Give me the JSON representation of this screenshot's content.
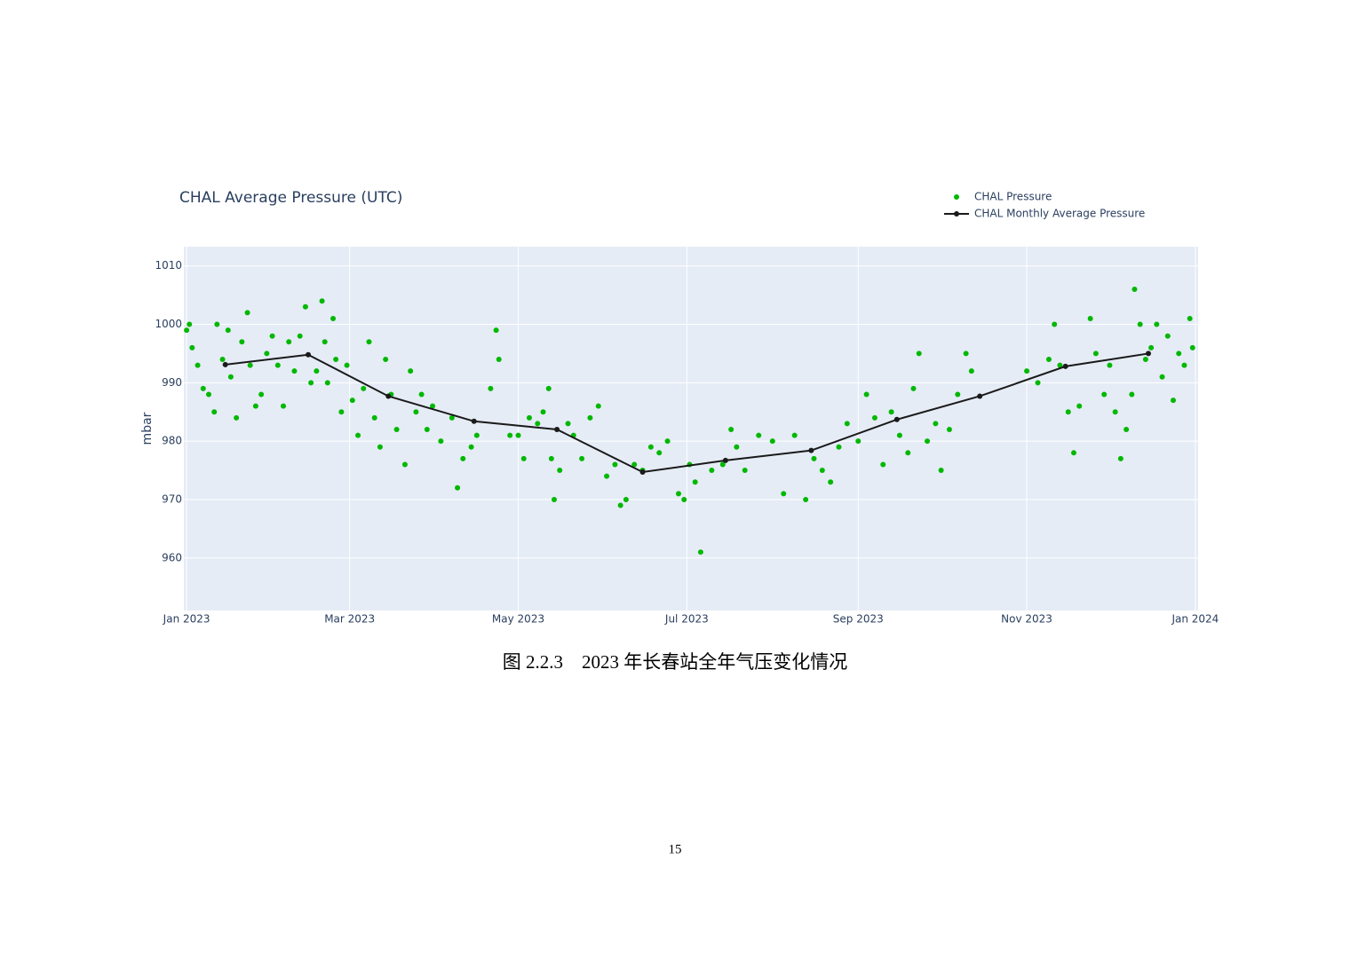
{
  "chart_data": {
    "type": "scatter",
    "title": "CHAL Average Pressure (UTC)",
    "ylabel": "mbar",
    "xlim": [
      "2022-12-31",
      "2024-01-02"
    ],
    "xticks": [
      {
        "value": "2023-01-01",
        "label": "Jan 2023"
      },
      {
        "value": "2023-03-01",
        "label": "Mar 2023"
      },
      {
        "value": "2023-05-01",
        "label": "May 2023"
      },
      {
        "value": "2023-07-01",
        "label": "Jul 2023"
      },
      {
        "value": "2023-09-01",
        "label": "Sep 2023"
      },
      {
        "value": "2023-11-01",
        "label": "Nov 2023"
      },
      {
        "value": "2024-01-01",
        "label": "Jan 2024"
      }
    ],
    "ylim": [
      951,
      1013.3
    ],
    "yticks": [
      960,
      970,
      980,
      990,
      1000,
      1010
    ],
    "grid": true,
    "legend": "top-right",
    "series": [
      {
        "name": "CHAL Pressure",
        "color": "#00b800",
        "mode": "markers",
        "x": [
          "2023-01-01",
          "2023-01-02",
          "2023-01-03",
          "2023-01-05",
          "2023-01-07",
          "2023-01-09",
          "2023-01-11",
          "2023-01-12",
          "2023-01-14",
          "2023-01-16",
          "2023-01-17",
          "2023-01-19",
          "2023-01-21",
          "2023-01-23",
          "2023-01-24",
          "2023-01-26",
          "2023-01-28",
          "2023-01-30",
          "2023-02-01",
          "2023-02-03",
          "2023-02-05",
          "2023-02-07",
          "2023-02-09",
          "2023-02-11",
          "2023-02-13",
          "2023-02-15",
          "2023-02-17",
          "2023-02-19",
          "2023-02-20",
          "2023-02-21",
          "2023-02-23",
          "2023-02-24",
          "2023-02-26",
          "2023-02-28",
          "2023-03-02",
          "2023-03-04",
          "2023-03-06",
          "2023-03-08",
          "2023-03-10",
          "2023-03-12",
          "2023-03-14",
          "2023-03-16",
          "2023-03-18",
          "2023-03-21",
          "2023-03-23",
          "2023-03-25",
          "2023-03-27",
          "2023-03-29",
          "2023-03-31",
          "2023-04-03",
          "2023-04-07",
          "2023-04-09",
          "2023-04-11",
          "2023-04-14",
          "2023-04-16",
          "2023-04-21",
          "2023-04-23",
          "2023-04-24",
          "2023-04-28",
          "2023-05-01",
          "2023-05-03",
          "2023-05-05",
          "2023-05-08",
          "2023-05-10",
          "2023-05-12",
          "2023-05-13",
          "2023-05-14",
          "2023-05-16",
          "2023-05-19",
          "2023-05-21",
          "2023-05-24",
          "2023-05-27",
          "2023-05-30",
          "2023-06-02",
          "2023-06-05",
          "2023-06-07",
          "2023-06-09",
          "2023-06-12",
          "2023-06-15",
          "2023-06-18",
          "2023-06-21",
          "2023-06-24",
          "2023-06-28",
          "2023-06-30",
          "2023-07-02",
          "2023-07-04",
          "2023-07-06",
          "2023-07-10",
          "2023-07-14",
          "2023-07-17",
          "2023-07-19",
          "2023-07-22",
          "2023-07-27",
          "2023-08-01",
          "2023-08-05",
          "2023-08-09",
          "2023-08-13",
          "2023-08-16",
          "2023-08-19",
          "2023-08-22",
          "2023-08-25",
          "2023-08-28",
          "2023-09-01",
          "2023-09-04",
          "2023-09-07",
          "2023-09-10",
          "2023-09-13",
          "2023-09-16",
          "2023-09-19",
          "2023-09-21",
          "2023-09-23",
          "2023-09-26",
          "2023-09-29",
          "2023-10-01",
          "2023-10-04",
          "2023-10-07",
          "2023-10-10",
          "2023-10-12",
          "2023-11-01",
          "2023-11-05",
          "2023-11-09",
          "2023-11-11",
          "2023-11-13",
          "2023-11-16",
          "2023-11-18",
          "2023-11-20",
          "2023-11-24",
          "2023-11-26",
          "2023-11-29",
          "2023-12-01",
          "2023-12-03",
          "2023-12-05",
          "2023-12-07",
          "2023-12-09",
          "2023-12-10",
          "2023-12-12",
          "2023-12-14",
          "2023-12-16",
          "2023-12-18",
          "2023-12-20",
          "2023-12-22",
          "2023-12-24",
          "2023-12-26",
          "2023-12-28",
          "2023-12-30",
          "2023-12-31"
        ],
        "values": [
          999,
          1000,
          996,
          993,
          989,
          988,
          985,
          1000,
          994,
          999,
          991,
          984,
          997,
          1002,
          993,
          986,
          988,
          995,
          998,
          993,
          986,
          997,
          992,
          998,
          1003,
          990,
          992,
          1004,
          997,
          990,
          1001,
          994,
          985,
          993,
          987,
          981,
          989,
          997,
          984,
          979,
          994,
          988,
          982,
          976,
          992,
          985,
          988,
          982,
          986,
          980,
          984,
          972,
          977,
          979,
          981,
          989,
          999,
          994,
          981,
          981,
          977,
          984,
          983,
          985,
          989,
          977,
          970,
          975,
          983,
          981,
          977,
          984,
          986,
          974,
          976,
          969,
          970,
          976,
          975,
          979,
          978,
          980,
          971,
          970,
          976,
          973,
          961,
          975,
          976,
          982,
          979,
          975,
          981,
          980,
          971,
          981,
          970,
          977,
          975,
          973,
          979,
          983,
          980,
          988,
          984,
          976,
          985,
          981,
          978,
          989,
          995,
          980,
          983,
          975,
          982,
          988,
          995,
          992,
          992,
          990,
          994,
          1000,
          993,
          985,
          978,
          986,
          1001,
          995,
          988,
          993,
          985,
          977,
          982,
          988,
          1006,
          1000,
          994,
          996,
          1000,
          991,
          998,
          987,
          995,
          993,
          1001,
          996
        ]
      },
      {
        "name": "CHAL Monthly Average Pressure",
        "color": "#1a1a1a",
        "mode": "lines+markers",
        "x": [
          "2023-01-15",
          "2023-02-14",
          "2023-03-15",
          "2023-04-15",
          "2023-05-15",
          "2023-06-15",
          "2023-07-15",
          "2023-08-15",
          "2023-09-15",
          "2023-10-15",
          "2023-11-15",
          "2023-12-15"
        ],
        "values": [
          993.1,
          994.8,
          987.7,
          983.4,
          982.0,
          974.7,
          976.7,
          978.4,
          983.7,
          987.7,
          992.8,
          995.0
        ]
      }
    ]
  },
  "caption": "图 2.2.3　2023 年长春站全年气压变化情况",
  "page_number": "15"
}
